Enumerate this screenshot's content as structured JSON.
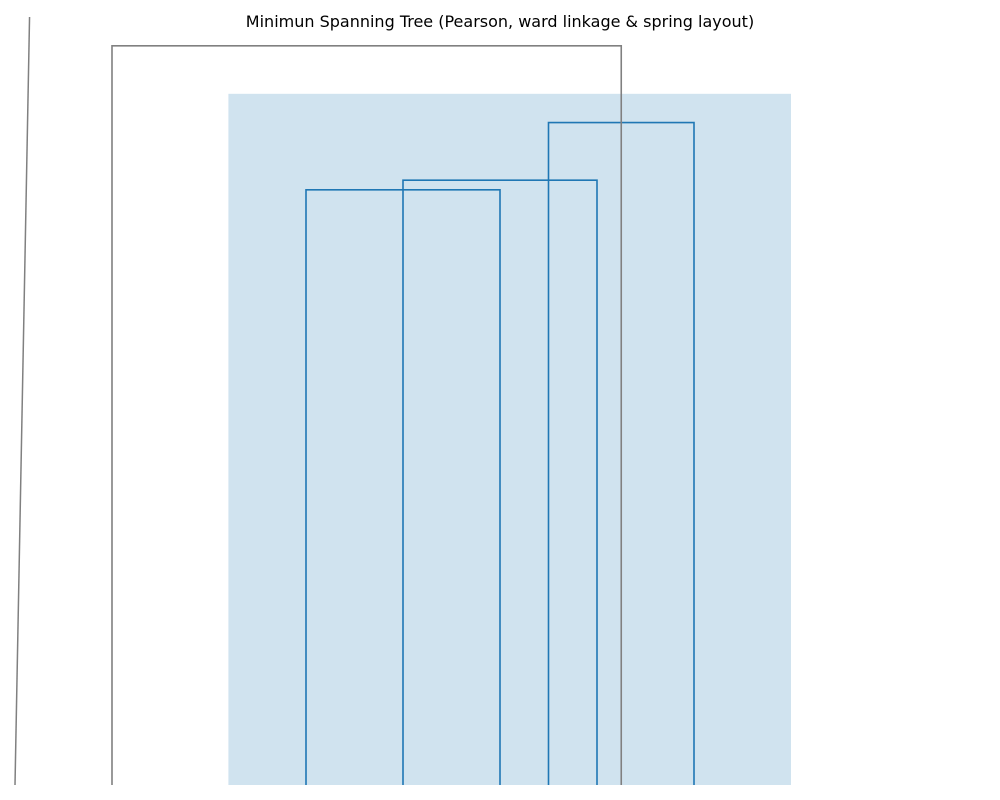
{
  "chart_data": {
    "type": "dendrogram",
    "title": "Minimun Spanning Tree (Pearson, ward linkage & spring layout)",
    "xlabel": "",
    "ylabel": "",
    "axes_visible": false,
    "grid": false,
    "leaf_count": 6,
    "links": [
      {
        "left_x": 3.0,
        "right_x": 5.0,
        "height": 6.2,
        "cluster": "highlighted"
      },
      {
        "left_x": 4.0,
        "right_x": 6.0,
        "height": 6.3,
        "cluster": "highlighted"
      },
      {
        "left_x": 5.5,
        "right_x": 7.0,
        "height": 6.9,
        "cluster": "highlighted"
      },
      {
        "left_x": 1.0,
        "right_x": 6.25,
        "height": 7.7,
        "cluster": "other"
      }
    ],
    "highlight_cluster": {
      "x_range": [
        2.2,
        8.0
      ],
      "y_range": [
        0,
        7.2
      ]
    },
    "stray_line": {
      "x": [
        0.0,
        0.15
      ],
      "y": [
        0,
        8.0
      ]
    },
    "colors": {
      "highlighted_link": "#1f77b4",
      "other_link": "#808080",
      "highlight_fill": "#d0e3ef"
    }
  }
}
